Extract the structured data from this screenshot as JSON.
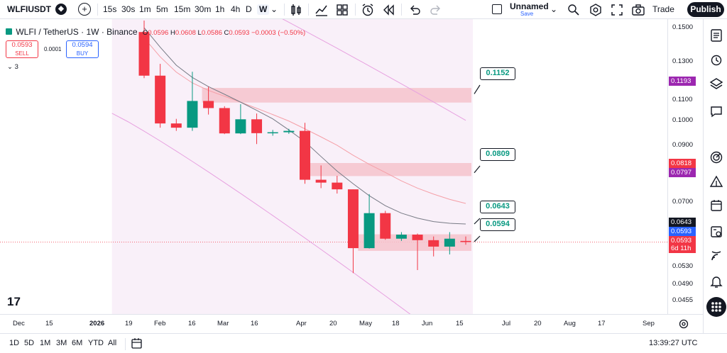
{
  "toolbar": {
    "symbol": "WLFIUSDT",
    "timeframes": [
      "15s",
      "30s",
      "1m",
      "5m",
      "15m",
      "30m",
      "1h",
      "4h",
      "D",
      "W"
    ],
    "active_timeframe": "W",
    "layout_name": "Unnamed",
    "layout_save": "Save",
    "trade_label": "Trade",
    "publish_label": "Publish"
  },
  "legend": {
    "title": "WLFI / TetherUS · 1W · Binance",
    "open_label": "O",
    "open": "0.0596",
    "high_label": "H",
    "high": "0.0608",
    "low_label": "L",
    "low": "0.0586",
    "close_label": "C",
    "close": "0.0593",
    "change": "−0.0003 (−0.50%)",
    "sell_price": "0.0593",
    "sell_label": "SELL",
    "spread": "0.0001",
    "buy_price": "0.0594",
    "buy_label": "BUY",
    "indicators_count": "3"
  },
  "price_axis": {
    "ticks": [
      "0.1500",
      "0.1300",
      "0.1100",
      "0.1000",
      "0.0900",
      "0.0700",
      "0.0530",
      "0.0490",
      "0.0455"
    ],
    "tags": [
      {
        "value": "0.1193",
        "color": "#9c27b0"
      },
      {
        "value": "0.0818",
        "color": "#f23645"
      },
      {
        "value": "0.0797",
        "color": "#9c27b0"
      },
      {
        "value": "0.0643",
        "color": "#131722"
      },
      {
        "value": "0.0593",
        "color": "#2962ff"
      },
      {
        "value": "0.0593",
        "color": "#f23645"
      }
    ],
    "countdown": "6d 11h"
  },
  "time_axis": {
    "labels": [
      "Dec",
      "15",
      "2026",
      "19",
      "Feb",
      "16",
      "Mar",
      "16",
      "Apr",
      "20",
      "May",
      "18",
      "Jun",
      "15",
      "Jul",
      "20",
      "Aug",
      "17",
      "Sep"
    ]
  },
  "callouts": [
    "0.1152",
    "0.0809",
    "0.0643",
    "0.0594"
  ],
  "chart_data": {
    "type": "candlestick",
    "title": "WLFI / TetherUS · 1W · Binance",
    "xlabel": "",
    "ylabel": "",
    "y_scale": "log",
    "ylim": [
      0.0435,
      0.158
    ],
    "candles": [
      {
        "o": 0.152,
        "h": 0.16,
        "l": 0.1236,
        "c": 0.125
      },
      {
        "o": 0.125,
        "h": 0.1318,
        "l": 0.099,
        "c": 0.1009
      },
      {
        "o": 0.1009,
        "h": 0.103,
        "l": 0.0976,
        "c": 0.099
      },
      {
        "o": 0.099,
        "h": 0.1272,
        "l": 0.0976,
        "c": 0.1116
      },
      {
        "o": 0.1116,
        "h": 0.119,
        "l": 0.105,
        "c": 0.1081
      },
      {
        "o": 0.1081,
        "h": 0.109,
        "l": 0.0962,
        "c": 0.0965
      },
      {
        "o": 0.0965,
        "h": 0.11,
        "l": 0.0962,
        "c": 0.1028
      },
      {
        "o": 0.1028,
        "h": 0.1055,
        "l": 0.092,
        "c": 0.0966
      },
      {
        "o": 0.0966,
        "h": 0.098,
        "l": 0.0955,
        "c": 0.097
      },
      {
        "o": 0.097,
        "h": 0.0985,
        "l": 0.0963,
        "c": 0.0976
      },
      {
        "o": 0.0976,
        "h": 0.1012,
        "l": 0.077,
        "c": 0.0784
      },
      {
        "o": 0.0784,
        "h": 0.0836,
        "l": 0.0755,
        "c": 0.0774
      },
      {
        "o": 0.0774,
        "h": 0.0798,
        "l": 0.0737,
        "c": 0.0751
      },
      {
        "o": 0.0751,
        "h": 0.0751,
        "l": 0.0516,
        "c": 0.0577
      },
      {
        "o": 0.0577,
        "h": 0.0735,
        "l": 0.0576,
        "c": 0.0675
      },
      {
        "o": 0.0675,
        "h": 0.0682,
        "l": 0.0599,
        "c": 0.0602
      },
      {
        "o": 0.0602,
        "h": 0.062,
        "l": 0.0596,
        "c": 0.0613
      },
      {
        "o": 0.0613,
        "h": 0.0616,
        "l": 0.0523,
        "c": 0.0598
      },
      {
        "o": 0.0598,
        "h": 0.0608,
        "l": 0.0556,
        "c": 0.0581
      },
      {
        "o": 0.0581,
        "h": 0.062,
        "l": 0.0561,
        "c": 0.0602
      },
      {
        "o": 0.0596,
        "h": 0.0608,
        "l": 0.0586,
        "c": 0.0593
      }
    ],
    "zones": [
      {
        "from": 0.1108,
        "to": 0.1183
      },
      {
        "from": 0.0797,
        "to": 0.0845
      },
      {
        "from": 0.057,
        "to": 0.0614
      }
    ],
    "moving_average_1": [
      0.148,
      0.136,
      0.127,
      0.121,
      0.117,
      0.114,
      0.111,
      0.108,
      0.105,
      0.102,
      0.0985,
      0.095,
      0.0915,
      0.0875,
      0.084,
      0.081,
      0.078,
      0.0755,
      0.0735,
      0.0718,
      0.0705
    ],
    "moving_average_2": [
      0.155,
      0.142,
      0.131,
      0.124,
      0.119,
      0.115,
      0.111,
      0.107,
      0.103,
      0.098,
      0.093,
      0.087,
      0.0815,
      0.077,
      0.073,
      0.0698,
      0.0675,
      0.066,
      0.065,
      0.0645,
      0.0643
    ]
  }
}
